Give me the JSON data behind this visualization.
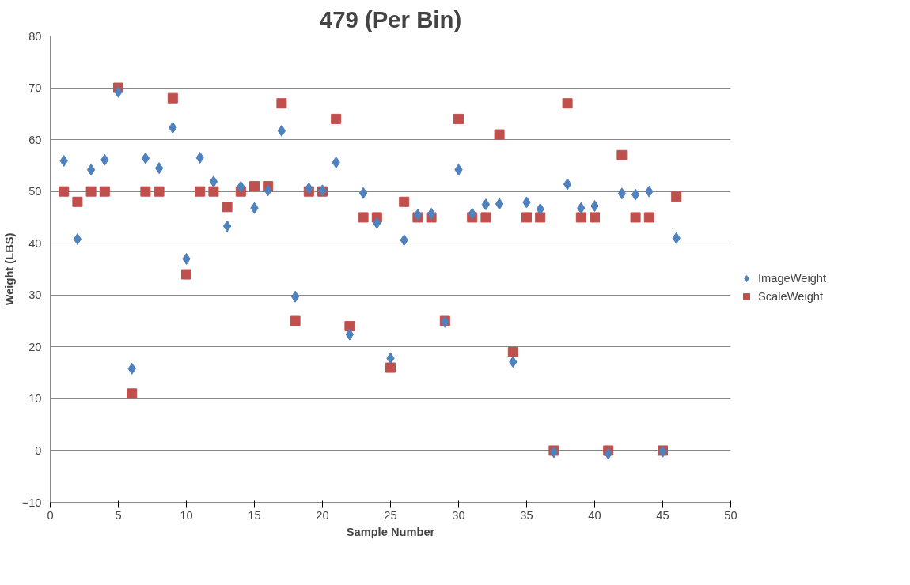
{
  "chart_data": {
    "type": "scatter",
    "title": "479 (Per Bin)",
    "xlabel": "Sample Number",
    "ylabel": "Weight (LBS)",
    "x": [
      1,
      2,
      3,
      4,
      5,
      6,
      7,
      8,
      9,
      10,
      11,
      12,
      13,
      14,
      15,
      16,
      17,
      18,
      19,
      20,
      21,
      22,
      23,
      24,
      25,
      26,
      27,
      28,
      29,
      30,
      31,
      32,
      33,
      34,
      35,
      36,
      37,
      38,
      39,
      40,
      41,
      42,
      43,
      44,
      45,
      46
    ],
    "series": [
      {
        "name": "ImageWeight",
        "color": "#4f81bd",
        "marker": "diamond",
        "values": [
          55.9,
          40.8,
          54.2,
          56.1,
          69.2,
          15.8,
          56.4,
          54.5,
          62.3,
          37,
          56.5,
          51.9,
          43.3,
          50.9,
          46.8,
          50.2,
          61.7,
          29.7,
          50.6,
          50.2,
          55.6,
          22.4,
          49.7,
          43.9,
          17.8,
          40.6,
          45.5,
          45.7,
          24.8,
          54.2,
          45.7,
          47.5,
          47.6,
          17.1,
          47.9,
          46.6,
          -0.3,
          51.4,
          46.8,
          47.2,
          -0.6,
          49.6,
          49.4,
          50,
          -0.2,
          41
        ]
      },
      {
        "name": "ScaleWeight",
        "color": "#c0504d",
        "marker": "square",
        "values": [
          50,
          48,
          50,
          50,
          70,
          11,
          50,
          50,
          68,
          34,
          50,
          50,
          47,
          50,
          51,
          51,
          67,
          25,
          50,
          50,
          64,
          24,
          45,
          45,
          16,
          48,
          45,
          45,
          25,
          64,
          45,
          45,
          61,
          19,
          45,
          45,
          0,
          67,
          45,
          45,
          0,
          57,
          45,
          45,
          0,
          49
        ]
      }
    ],
    "xlim": [
      0,
      50
    ],
    "xticks": [
      0,
      5,
      10,
      15,
      20,
      25,
      30,
      35,
      40,
      45,
      50
    ],
    "ylim": [
      -10,
      80
    ],
    "yticks": [
      -10,
      0,
      10,
      20,
      30,
      40,
      50,
      60,
      70,
      80
    ],
    "grid": "y",
    "legend": "right"
  }
}
